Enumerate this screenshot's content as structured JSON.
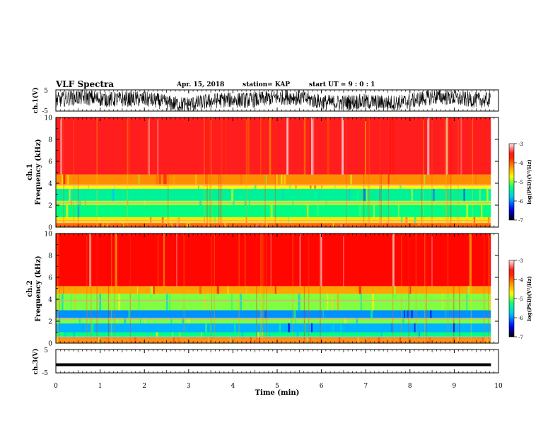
{
  "header": {
    "title": "VLF Spectra",
    "date": "Apr. 15, 2018",
    "station": "station= KAP",
    "start": "start  UT =   9 : 0  : 1"
  },
  "colors": {
    "colormap": [
      "#000000",
      "#0000ff",
      "#00c0ff",
      "#00ff80",
      "#ffff00",
      "#ff8000",
      "#ff0000",
      "#ffffff"
    ],
    "waveform": "#000000"
  },
  "chart_data": [
    {
      "type": "line",
      "panel": "ch1-waveform",
      "ylabel": "ch.1(V)",
      "ylim": [
        -5,
        5
      ],
      "yticks": [
        "5",
        "-5"
      ],
      "description_values": "noisy oscillation spanning roughly -4 to 4 V"
    },
    {
      "type": "heatmap",
      "panel": "ch1-spectrogram",
      "ylabel_line1": "ch.1",
      "ylabel_line2": "Frequency (kHz)",
      "ylim": [
        0,
        10
      ],
      "yticks": [
        "0",
        "2",
        "4",
        "6",
        "8",
        "10"
      ],
      "bands": [
        {
          "f": [
            0.0,
            0.4
          ],
          "level": -4.0
        },
        {
          "f": [
            0.4,
            0.9
          ],
          "level": -4.6
        },
        {
          "f": [
            0.9,
            2.0
          ],
          "level": -5.3
        },
        {
          "f": [
            2.0,
            2.4
          ],
          "level": -4.9
        },
        {
          "f": [
            2.4,
            3.5
          ],
          "level": -5.4
        },
        {
          "f": [
            3.5,
            3.8
          ],
          "level": -4.7
        },
        {
          "f": [
            3.8,
            4.8
          ],
          "level": -4.2
        },
        {
          "f": [
            4.8,
            10.0
          ],
          "level": -3.5
        }
      ],
      "colorbar": {
        "label": "log(PSD)(V²/Hz)",
        "range": [
          -7,
          -3
        ],
        "ticks": [
          "-3",
          "-4",
          "-5",
          "-6",
          "-7"
        ]
      }
    },
    {
      "type": "heatmap",
      "panel": "ch2-spectrogram",
      "ylabel_line1": "ch.2",
      "ylabel_line2": "Frequency (kHz)",
      "ylim": [
        0,
        10
      ],
      "yticks": [
        "0",
        "2",
        "4",
        "6",
        "8",
        "10"
      ],
      "bands": [
        {
          "f": [
            0.0,
            0.5
          ],
          "level": -4.2
        },
        {
          "f": [
            0.5,
            1.0
          ],
          "level": -5.3
        },
        {
          "f": [
            1.0,
            1.8
          ],
          "level": -5.9
        },
        {
          "f": [
            1.8,
            2.3
          ],
          "level": -5.0
        },
        {
          "f": [
            2.3,
            3.0
          ],
          "level": -6.0
        },
        {
          "f": [
            3.0,
            4.5
          ],
          "level": -5.0
        },
        {
          "f": [
            4.5,
            5.2
          ],
          "level": -4.3
        },
        {
          "f": [
            5.2,
            10.0
          ],
          "level": -3.6
        }
      ],
      "colorbar": {
        "label": "log(PSD)(V²/Hz)",
        "range": [
          -7,
          -3
        ],
        "ticks": [
          "-3",
          "-4",
          "-5",
          "-6",
          "-7"
        ]
      }
    },
    {
      "type": "line",
      "panel": "ch3-waveform",
      "ylabel": "ch.3(V)",
      "ylim": [
        -5,
        5
      ],
      "yticks": [
        "5",
        "-5"
      ],
      "values_constant": -1.5
    }
  ],
  "xaxis": {
    "label": "Time (min)",
    "xlim": [
      0,
      10
    ],
    "data_end": 9.83,
    "ticks": [
      "0",
      "1",
      "2",
      "3",
      "4",
      "5",
      "6",
      "7",
      "8",
      "9",
      "10"
    ]
  }
}
